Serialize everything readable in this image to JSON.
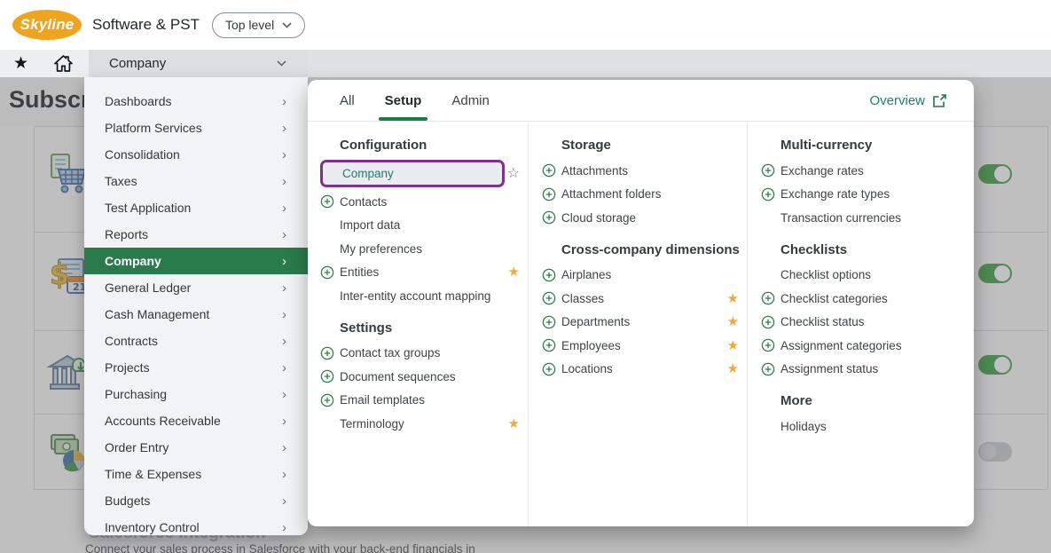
{
  "topbar": {
    "logo": "Skyline",
    "company": "Software & PST",
    "entity": "Top level"
  },
  "navbar": {
    "app": "Company"
  },
  "background": {
    "page_title": "Subscri",
    "modules": [
      {
        "icon": "purchasing-cart-icon",
        "enabled": true
      },
      {
        "icon": "billing-calendar-icon",
        "enabled": true
      },
      {
        "icon": "cash-management-bank-icon",
        "enabled": true
      },
      {
        "icon": "general-ledger-pie-icon",
        "enabled": false
      }
    ],
    "salesforce_heading": "Salesforce Integration",
    "salesforce_description": "Connect your sales process in Salesforce with your back-end financials in"
  },
  "app_menu": {
    "selected": "Company",
    "items": [
      "Dashboards",
      "Platform Services",
      "Consolidation",
      "Taxes",
      "Test Application",
      "Reports",
      "Company",
      "General Ledger",
      "Cash Management",
      "Contracts",
      "Projects",
      "Purchasing",
      "Accounts Receivable",
      "Order Entry",
      "Time & Expenses",
      "Budgets",
      "Inventory Control"
    ]
  },
  "mega_menu": {
    "tabs": [
      {
        "label": "All",
        "active": false
      },
      {
        "label": "Setup",
        "active": true
      },
      {
        "label": "Admin",
        "active": false
      }
    ],
    "overview": "Overview",
    "columns": [
      {
        "sections": [
          {
            "title": "Configuration",
            "items": [
              {
                "label": "Company",
                "highlighted": true,
                "star": "outline"
              },
              {
                "label": "Contacts",
                "add": true
              },
              {
                "label": "Import data"
              },
              {
                "label": "My preferences"
              },
              {
                "label": "Entities",
                "add": true,
                "star": "filled"
              },
              {
                "label": "Inter-entity account mapping"
              }
            ]
          },
          {
            "title": "Settings",
            "items": [
              {
                "label": "Contact tax groups",
                "add": true
              },
              {
                "label": "Document sequences",
                "add": true
              },
              {
                "label": "Email templates",
                "add": true
              },
              {
                "label": "Terminology",
                "star": "filled"
              }
            ]
          }
        ]
      },
      {
        "sections": [
          {
            "title": "Storage",
            "items": [
              {
                "label": "Attachments",
                "add": true
              },
              {
                "label": "Attachment folders",
                "add": true
              },
              {
                "label": "Cloud storage",
                "add": true
              }
            ]
          },
          {
            "title": "Cross-company dimensions",
            "items": [
              {
                "label": "Airplanes",
                "add": true
              },
              {
                "label": "Classes",
                "add": true,
                "star": "filled"
              },
              {
                "label": "Departments",
                "add": true,
                "star": "filled"
              },
              {
                "label": "Employees",
                "add": true,
                "star": "filled"
              },
              {
                "label": "Locations",
                "add": true,
                "star": "filled"
              }
            ]
          }
        ]
      },
      {
        "sections": [
          {
            "title": "Multi-currency",
            "items": [
              {
                "label": "Exchange rates",
                "add": true
              },
              {
                "label": "Exchange rate types",
                "add": true
              },
              {
                "label": "Transaction currencies"
              }
            ]
          },
          {
            "title": "Checklists",
            "items": [
              {
                "label": "Checklist options"
              },
              {
                "label": "Checklist categories",
                "add": true
              },
              {
                "label": "Checklist status",
                "add": true
              },
              {
                "label": "Assignment categories",
                "add": true
              },
              {
                "label": "Assignment status",
                "add": true
              }
            ]
          },
          {
            "title": "More",
            "items": [
              {
                "label": "Holidays"
              }
            ]
          }
        ]
      }
    ]
  },
  "colors": {
    "brand_green": "#2a7b4c",
    "tab_underline": "#1e7a46",
    "link_teal": "#1b7f6e",
    "highlight_purple": "#7d3190",
    "favorite_gold": "#f2a93b",
    "logo_orange": "#f0a31c",
    "toggle_on": "#37a040",
    "add_icon_green": "#2e7d4e"
  }
}
